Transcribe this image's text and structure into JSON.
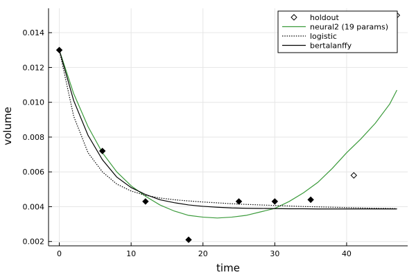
{
  "chart_data": {
    "type": "scatter",
    "xlabel": "time",
    "ylabel": "volume",
    "xlim": [
      -1.5,
      48.5
    ],
    "ylim": [
      0.00175,
      0.0154
    ],
    "xticks": [
      0,
      10,
      20,
      30,
      40
    ],
    "yticks": [
      0.002,
      0.004,
      0.006,
      0.008,
      0.01,
      0.012,
      0.014
    ],
    "ytick_labels": [
      "0.002",
      "0.004",
      "0.006",
      "0.008",
      "0.010",
      "0.012",
      "0.014"
    ],
    "grid": true,
    "legend_position": "top-right",
    "series": [
      {
        "name": "",
        "kind": "markers",
        "marker": "filled-diamond",
        "color": "#000000",
        "x": [
          0,
          6,
          12,
          18,
          25,
          30,
          35
        ],
        "y": [
          0.013,
          0.0072,
          0.0043,
          0.0021,
          0.0043,
          0.0043,
          0.0044
        ]
      },
      {
        "name": "holdout",
        "kind": "markers",
        "marker": "hollow-diamond",
        "color": "#000000",
        "x": [
          41,
          47
        ],
        "y": [
          0.0058,
          0.015
        ]
      },
      {
        "name": "neural2 (19 params)",
        "kind": "line",
        "style": "solid",
        "color": "#3a9a3a",
        "x": [
          0,
          2,
          4,
          6,
          8,
          10,
          12,
          14,
          16,
          18,
          20,
          22,
          24,
          26,
          28,
          30,
          32,
          34,
          36,
          38,
          40,
          42,
          44,
          46,
          47
        ],
        "y": [
          0.013,
          0.0105,
          0.0086,
          0.0071,
          0.006,
          0.0052,
          0.0046,
          0.0041,
          0.00375,
          0.0035,
          0.0034,
          0.00335,
          0.0034,
          0.0035,
          0.0037,
          0.0039,
          0.0043,
          0.0048,
          0.0054,
          0.0062,
          0.0071,
          0.0079,
          0.0088,
          0.0099,
          0.0107
        ]
      },
      {
        "name": "logistic",
        "kind": "line",
        "style": "dotted",
        "color": "#000000",
        "x": [
          0,
          2,
          4,
          6,
          8,
          10,
          12,
          14,
          16,
          18,
          20,
          22,
          24,
          26,
          28,
          30,
          32,
          34,
          36,
          38,
          40,
          42,
          44,
          46,
          47
        ],
        "y": [
          0.013,
          0.0092,
          0.0071,
          0.006,
          0.0053,
          0.0049,
          0.00465,
          0.0045,
          0.0044,
          0.00433,
          0.00427,
          0.00422,
          0.00417,
          0.00413,
          0.0041,
          0.00407,
          0.00404,
          0.00401,
          0.00399,
          0.00397,
          0.00395,
          0.00393,
          0.00391,
          0.0039,
          0.00389
        ]
      },
      {
        "name": "bertalanffy",
        "kind": "line",
        "style": "solid",
        "color": "#000000",
        "x": [
          0,
          2,
          4,
          6,
          8,
          10,
          12,
          14,
          16,
          18,
          20,
          22,
          24,
          26,
          28,
          30,
          32,
          34,
          36,
          38,
          40,
          42,
          44,
          46,
          47
        ],
        "y": [
          0.013,
          0.0101,
          0.0081,
          0.0067,
          0.0057,
          0.0051,
          0.0047,
          0.0044,
          0.00423,
          0.0041,
          0.00402,
          0.00397,
          0.00393,
          0.00391,
          0.0039,
          0.00389,
          0.00388,
          0.00388,
          0.00387,
          0.00387,
          0.00387,
          0.00387,
          0.00387,
          0.00387,
          0.00387
        ]
      }
    ]
  }
}
